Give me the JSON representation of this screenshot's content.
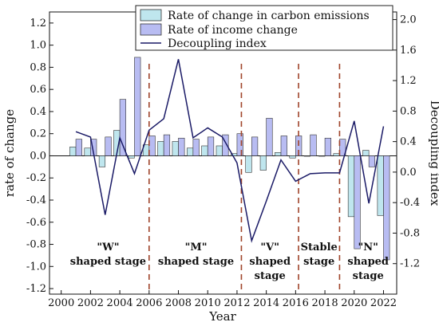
{
  "chart_data": {
    "type": "bar",
    "xlabel": "Year",
    "ylabel_left": "rate of change",
    "ylabel_right": "Decoupling index",
    "x": [
      2001,
      2002,
      2003,
      2004,
      2005,
      2006,
      2007,
      2008,
      2009,
      2010,
      2011,
      2012,
      2013,
      2014,
      2015,
      2016,
      2017,
      2018,
      2019,
      2020,
      2021,
      2022
    ],
    "x_ticks": [
      "2000",
      "2002",
      "2004",
      "2006",
      "2008",
      "2010",
      "2012",
      "2014",
      "2016",
      "2018",
      "2020",
      "2022"
    ],
    "y_left_ticks": [
      "-1.2",
      "-1.0",
      "-0.8",
      "-0.6",
      "-0.4",
      "-0.2",
      "0.0",
      "0.2",
      "0.4",
      "0.6",
      "0.8",
      "1.0",
      "1.2"
    ],
    "y_right_ticks": [
      "-1.2",
      "-0.8",
      "-0.4",
      "0.0",
      "0.4",
      "0.8",
      "1.2",
      "1.6",
      "2.0"
    ],
    "ylim_left": [
      -1.25,
      1.3
    ],
    "ylim_right": [
      -1.6,
      2.1
    ],
    "xlim": [
      1999.2,
      2022.9
    ],
    "series": [
      {
        "name": "Rate of change in carbon emissions",
        "axis": "left",
        "kind": "bar",
        "color": "#bfe6ee",
        "values": [
          0.08,
          0.07,
          -0.1,
          0.23,
          -0.02,
          0.1,
          0.13,
          0.13,
          0.07,
          0.09,
          0.09,
          0.02,
          -0.15,
          -0.13,
          0.03,
          -0.02,
          0.0,
          0.0,
          0.02,
          -0.55,
          0.05,
          -0.54
        ]
      },
      {
        "name": "Rate of income change",
        "axis": "left",
        "kind": "bar",
        "color": "#b8bcf2",
        "values": [
          0.15,
          0.15,
          0.17,
          0.51,
          0.89,
          0.18,
          0.19,
          0.16,
          0.15,
          0.17,
          0.19,
          0.2,
          0.17,
          0.34,
          0.18,
          0.18,
          0.19,
          0.16,
          0.15,
          -0.84,
          -0.1,
          -0.94
        ]
      },
      {
        "name": "Decoupling index",
        "axis": "right",
        "kind": "line",
        "color": "#1a1a66",
        "values": [
          0.53,
          0.46,
          -0.56,
          0.45,
          -0.02,
          0.55,
          0.7,
          1.48,
          0.45,
          0.58,
          0.46,
          0.12,
          -0.9,
          -0.38,
          0.16,
          -0.12,
          -0.02,
          -0.01,
          -0.01,
          0.67,
          -0.41,
          0.6
        ]
      }
    ],
    "stage_dividers": [
      2006,
      2012.3,
      2016.2,
      2019
    ],
    "stages": [
      {
        "lines": [
          "\"W\"",
          "shaped stage"
        ],
        "x": 2003.2
      },
      {
        "lines": [
          "\"M\"",
          "shaped stage"
        ],
        "x": 2009.2
      },
      {
        "lines": [
          "\"V\"",
          "shaped",
          "stage"
        ],
        "x": 2014.25
      },
      {
        "lines": [
          "Stable",
          "stage"
        ],
        "x": 2017.6
      },
      {
        "lines": [
          "\"N\"",
          "shaped",
          "stage"
        ],
        "x": 2020.95
      }
    ],
    "legend_position": "top-right",
    "grid": false
  }
}
